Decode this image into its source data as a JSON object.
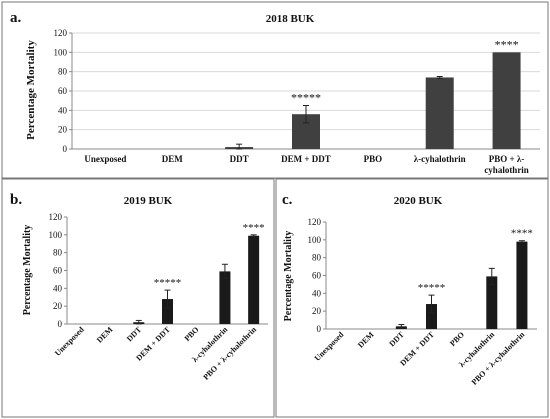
{
  "chart_data": [
    {
      "type": "bar",
      "panel_label": "a.",
      "title": "2018 BUK",
      "ylabel": "Percentage Mortality",
      "xlabel": "",
      "ylim": [
        0,
        120
      ],
      "yticks": [
        0,
        20,
        40,
        60,
        80,
        100,
        120
      ],
      "grid": true,
      "bar_color": "#404040",
      "categories": [
        "Unexposed",
        "DEM",
        "DDT",
        "DEM + DDT",
        "PBO",
        "λ-cyhalothrin",
        "PBO + λ-cyhalothrin"
      ],
      "category_lines": [
        [
          "Unexposed"
        ],
        [
          "DEM"
        ],
        [
          "DDT"
        ],
        [
          "DEM + DDT"
        ],
        [
          "PBO"
        ],
        [
          "λ-cyhalothrin"
        ],
        [
          "PBO + λ-",
          "cyhalothrin"
        ]
      ],
      "values": [
        0,
        0,
        2,
        36,
        0,
        74,
        100
      ],
      "errors": [
        0,
        0,
        3,
        9,
        0,
        1,
        0
      ],
      "annotations": [
        "",
        "",
        "",
        "*****",
        "",
        "",
        "****"
      ]
    },
    {
      "type": "bar",
      "panel_label": "b.",
      "title": "2019 BUK",
      "ylabel": "Percentage Mortality",
      "xlabel": "",
      "ylim": [
        0,
        120
      ],
      "yticks": [
        0,
        20,
        40,
        60,
        80,
        100,
        120
      ],
      "grid": false,
      "bar_color": "#1a1a1a",
      "categories": [
        "Unexposed",
        "DEM",
        "DDT",
        "DEM + DDT",
        "PBO",
        "λ-cyhalothrin",
        "PBO + λ-cyhalothrin"
      ],
      "values": [
        0,
        0,
        2,
        28,
        0,
        59,
        99
      ],
      "errors": [
        0,
        0,
        2,
        10,
        0,
        8,
        1
      ],
      "annotations": [
        "",
        "",
        "",
        "*****",
        "",
        "",
        "****"
      ]
    },
    {
      "type": "bar",
      "panel_label": "c.",
      "title": "2020 BUK",
      "ylabel": "Percentage Mortality",
      "xlabel": "",
      "ylim": [
        0,
        120
      ],
      "yticks": [
        0,
        20,
        40,
        60,
        80,
        100,
        120
      ],
      "grid": false,
      "bar_color": "#1a1a1a",
      "categories": [
        "Unexposed",
        "DEM",
        "DDT",
        "DEM + DDT",
        "PBO",
        "λ-cyhalothrin",
        "PBO + λ-cyhalothrin"
      ],
      "values": [
        0,
        0,
        3,
        28,
        0,
        59,
        98
      ],
      "errors": [
        0,
        0,
        2,
        10,
        0,
        9,
        1
      ],
      "annotations": [
        "",
        "",
        "",
        "*****",
        "",
        "",
        "****"
      ]
    }
  ]
}
